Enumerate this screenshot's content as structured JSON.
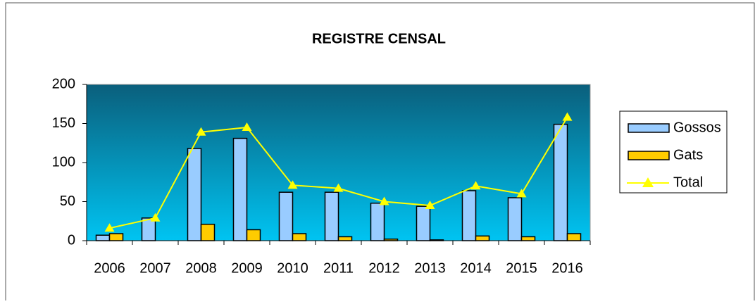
{
  "chart_data": {
    "type": "bar",
    "title": "REGISTRE CENSAL",
    "categories": [
      "2006",
      "2007",
      "2008",
      "2009",
      "2010",
      "2011",
      "2012",
      "2013",
      "2014",
      "2015",
      "2016"
    ],
    "series": [
      {
        "name": "Gossos",
        "color": "#99ccff",
        "values": [
          7,
          29,
          118,
          131,
          62,
          62,
          48,
          44,
          64,
          55,
          149
        ]
      },
      {
        "name": "Gats",
        "color": "#ffcc00",
        "values": [
          9,
          0,
          21,
          14,
          9,
          5,
          2,
          1,
          6,
          5,
          9
        ]
      },
      {
        "name": "Total",
        "type": "line",
        "color": "#ffff00",
        "values": [
          16,
          29,
          139,
          145,
          71,
          67,
          50,
          45,
          70,
          60,
          158
        ]
      }
    ],
    "ylim": [
      0,
      200
    ],
    "yticks": [
      0,
      50,
      100,
      150,
      200
    ],
    "legend": "right"
  }
}
